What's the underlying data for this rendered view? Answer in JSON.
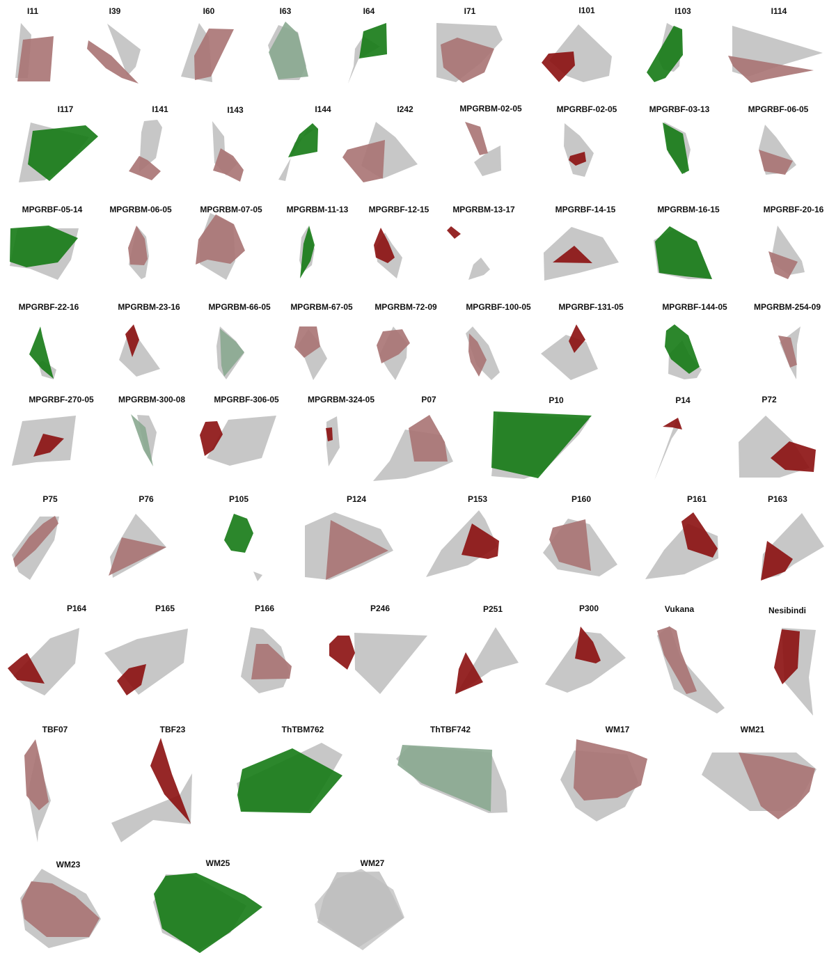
{
  "colors": {
    "gray": "#bdbdbd",
    "red": "#8b0f0f",
    "green": "#157a15",
    "pinkish": "#a87373",
    "sage": "#8aa890"
  },
  "panels": [
    {
      "label": "I11",
      "color": "pinkish"
    },
    {
      "label": "I39",
      "color": "pinkish"
    },
    {
      "label": "I60",
      "color": "pinkish"
    },
    {
      "label": "I63",
      "color": "sage"
    },
    {
      "label": "I64",
      "color": "green"
    },
    {
      "label": "I71",
      "color": "pinkish"
    },
    {
      "label": "I101",
      "color": "red"
    },
    {
      "label": "I103",
      "color": "green"
    },
    {
      "label": "I114",
      "color": "pinkish"
    },
    {
      "label": "I117",
      "color": "green"
    },
    {
      "label": "I141",
      "color": "pinkish"
    },
    {
      "label": "I143",
      "color": "pinkish"
    },
    {
      "label": "I144",
      "color": "green"
    },
    {
      "label": "I242",
      "color": "pinkish"
    },
    {
      "label": "MPGRBM-02-05",
      "color": "pinkish"
    },
    {
      "label": "MPGRBF-02-05",
      "color": "red"
    },
    {
      "label": "MPGRBF-03-13",
      "color": "green"
    },
    {
      "label": "MPGRBF-06-05",
      "color": "pinkish"
    },
    {
      "label": "MPGRBF-05-14",
      "color": "green"
    },
    {
      "label": "MPGRBM-06-05",
      "color": "pinkish"
    },
    {
      "label": "MPGRBM-07-05",
      "color": "pinkish"
    },
    {
      "label": "MPGRBM-11-13",
      "color": "green"
    },
    {
      "label": "MPGRBF-12-15",
      "color": "red"
    },
    {
      "label": "MPGRBM-13-17",
      "color": "red"
    },
    {
      "label": "MPGRBF-14-15",
      "color": "red"
    },
    {
      "label": "MPGRBM-16-15",
      "color": "green"
    },
    {
      "label": "MPGRBF-20-16",
      "color": "pinkish"
    },
    {
      "label": "MPGRBF-22-16",
      "color": "green"
    },
    {
      "label": "MPGRBM-23-16",
      "color": "red"
    },
    {
      "label": "MPGRBM-66-05",
      "color": "sage"
    },
    {
      "label": "MPGRBM-67-05",
      "color": "pinkish"
    },
    {
      "label": "MPGRBM-72-09",
      "color": "pinkish"
    },
    {
      "label": "MPGRBF-100-05",
      "color": "pinkish"
    },
    {
      "label": "MPGRBF-131-05",
      "color": "red"
    },
    {
      "label": "MPGRBF-144-05",
      "color": "green"
    },
    {
      "label": "MPGRBM-254-09",
      "color": "pinkish"
    },
    {
      "label": "MPGRBF-270-05",
      "color": "red"
    },
    {
      "label": "MPGRBM-300-08",
      "color": "sage"
    },
    {
      "label": "MPGRBF-306-05",
      "color": "red"
    },
    {
      "label": "MPGRBM-324-05",
      "color": "red"
    },
    {
      "label": "P07",
      "color": "pinkish"
    },
    {
      "label": "P10",
      "color": "green"
    },
    {
      "label": "P14",
      "color": "red"
    },
    {
      "label": "P72",
      "color": "red"
    },
    {
      "label": "P75",
      "color": "pinkish"
    },
    {
      "label": "P76",
      "color": "pinkish"
    },
    {
      "label": "P105",
      "color": "green"
    },
    {
      "label": "P124",
      "color": "pinkish"
    },
    {
      "label": "P153",
      "color": "red"
    },
    {
      "label": "P160",
      "color": "pinkish"
    },
    {
      "label": "P161",
      "color": "red"
    },
    {
      "label": "P163",
      "color": "red"
    },
    {
      "label": "P164",
      "color": "red"
    },
    {
      "label": "P165",
      "color": "red"
    },
    {
      "label": "P166",
      "color": "pinkish"
    },
    {
      "label": "P246",
      "color": "red"
    },
    {
      "label": "P251",
      "color": "red"
    },
    {
      "label": "P300",
      "color": "red"
    },
    {
      "label": "Vukana",
      "color": "pinkish"
    },
    {
      "label": "Nesibindi",
      "color": "red"
    },
    {
      "label": "TBF07",
      "color": "pinkish"
    },
    {
      "label": "TBF23",
      "color": "red"
    },
    {
      "label": "ThTBM762",
      "color": "green"
    },
    {
      "label": "ThTBF742",
      "color": "sage"
    },
    {
      "label": "WM17",
      "color": "pinkish"
    },
    {
      "label": "WM21",
      "color": "pinkish"
    },
    {
      "label": "WM23",
      "color": "pinkish"
    },
    {
      "label": "WM25",
      "color": "green"
    },
    {
      "label": "WM27",
      "color": "gray"
    }
  ]
}
